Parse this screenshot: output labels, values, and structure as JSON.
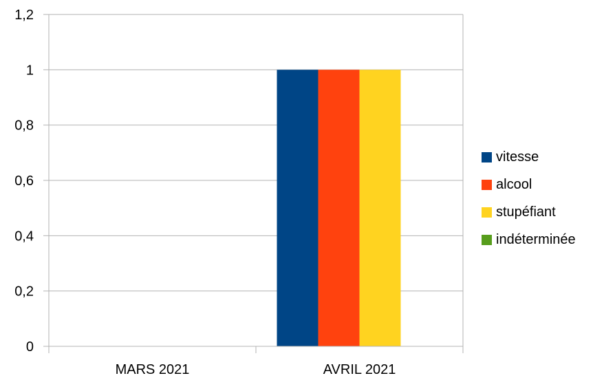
{
  "chart_data": {
    "type": "bar",
    "categories": [
      "MARS 2021",
      "AVRIL 2021"
    ],
    "series": [
      {
        "name": "vitesse",
        "values": [
          0,
          1
        ],
        "color": "#004586"
      },
      {
        "name": "alcool",
        "values": [
          0,
          1
        ],
        "color": "#ff420e"
      },
      {
        "name": "stupéfiant",
        "values": [
          0,
          1
        ],
        "color": "#ffd320"
      },
      {
        "name": "indéterminée",
        "values": [
          0,
          0
        ],
        "color": "#579d1c"
      }
    ],
    "yticks": [
      "0",
      "0,2",
      "0,4",
      "0,6",
      "0,8",
      "1",
      "1,2"
    ],
    "ylim": [
      0,
      1.2
    ],
    "grid": true,
    "legend_position": "right"
  }
}
